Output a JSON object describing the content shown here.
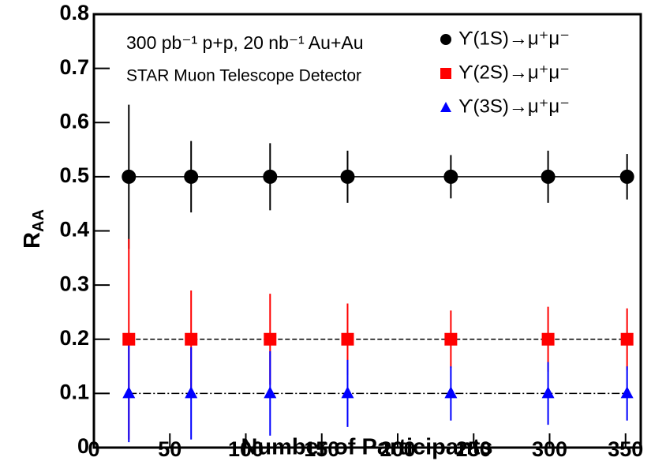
{
  "chart_data": {
    "type": "scatter",
    "x_label": "Number of Participants",
    "y_label": "R",
    "y_label_subscript": "AA",
    "annotations": [
      "300 pb⁻¹ p+p, 20 nb⁻¹ Au+Au",
      "STAR Muon Telescope Detector"
    ],
    "x": [
      23,
      64,
      116,
      167,
      235,
      299,
      351
    ],
    "series": [
      {
        "name": "ϒ(1S)→μ⁺μ⁻",
        "color": "#000000",
        "marker": "circle",
        "line": "solid",
        "values": [
          0.5,
          0.5,
          0.5,
          0.5,
          0.5,
          0.5,
          0.5
        ],
        "errors": [
          0.133,
          0.066,
          0.062,
          0.048,
          0.04,
          0.048,
          0.042
        ]
      },
      {
        "name": "ϒ(2S)→μ⁺μ⁻",
        "color": "#ff0000",
        "marker": "square",
        "line": "dashed",
        "values": [
          0.2,
          0.2,
          0.2,
          0.2,
          0.2,
          0.2,
          0.2
        ],
        "errors": [
          0.185,
          0.09,
          0.084,
          0.066,
          0.053,
          0.06,
          0.057
        ]
      },
      {
        "name": "ϒ(3S)→μ⁺μ⁻",
        "color": "#0000ff",
        "marker": "triangle",
        "line": "dashdot",
        "values": [
          0.1,
          0.1,
          0.1,
          0.1,
          0.1,
          0.1,
          0.1
        ],
        "errors": [
          0.09,
          0.085,
          0.078,
          0.062,
          0.05,
          0.058,
          0.05
        ]
      }
    ],
    "xlim": [
      0,
      360
    ],
    "ylim": [
      0,
      0.8
    ],
    "xticks": [
      0,
      50,
      100,
      150,
      200,
      250,
      300,
      350
    ],
    "yticks": [
      0,
      0.1,
      0.2,
      0.3,
      0.4,
      0.5,
      0.6,
      0.7,
      0.8
    ],
    "legend": "upper right"
  }
}
